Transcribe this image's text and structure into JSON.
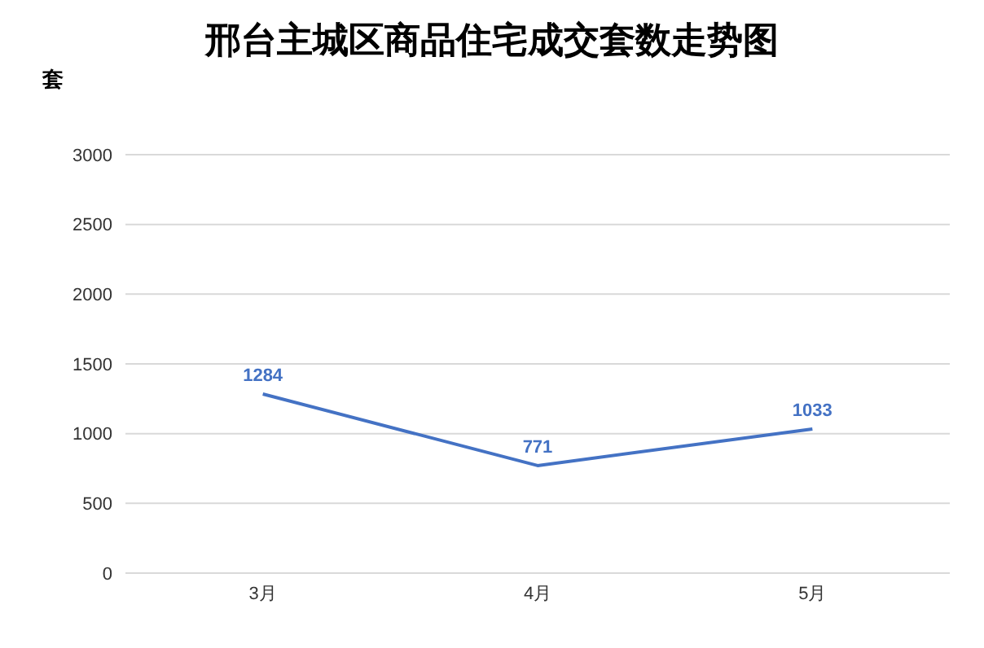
{
  "chart_data": {
    "type": "line",
    "title": "邢台主城区商品住宅成交套数走势图",
    "ylabel": "套",
    "categories": [
      "3月",
      "4月",
      "5月"
    ],
    "series": [
      {
        "color": "#4472c4",
        "values": [
          1284,
          771,
          1033
        ]
      }
    ],
    "ylim": [
      0,
      3000
    ],
    "yticks": [
      0,
      500,
      1000,
      1500,
      2000,
      2500,
      3000
    ],
    "grid": "y",
    "legend": false,
    "marker": "none",
    "line_style": "solid",
    "data_labels": true
  }
}
